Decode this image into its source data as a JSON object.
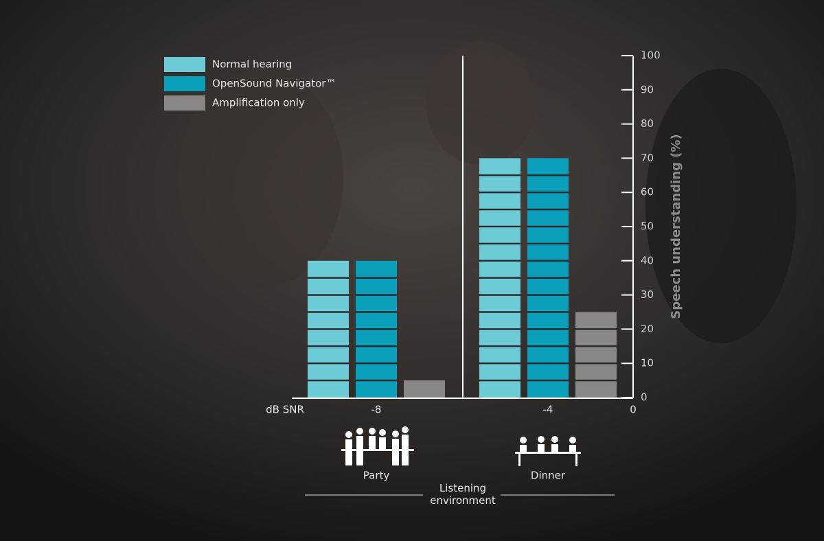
{
  "chart_data": {
    "type": "bar",
    "categories": [
      "-8",
      "-4"
    ],
    "x_axis_label": "dB SNR",
    "x_axis_end_label": "0",
    "y_axis_label": "Speech understanding (%)",
    "environments": [
      "Party",
      "Dinner"
    ],
    "environment_title": "Listening environment",
    "series": [
      {
        "name": "Normal hearing",
        "color": "#6ccbd6",
        "values": [
          40,
          70
        ]
      },
      {
        "name": "OpenSound Navigator™",
        "color": "#0a9fbb",
        "values": [
          40,
          70
        ]
      },
      {
        "name": "Amplification only",
        "color": "#8a8785",
        "values": [
          5,
          25
        ]
      }
    ],
    "ylim": [
      0,
      100
    ],
    "yticks": [
      0,
      10,
      20,
      30,
      40,
      50,
      60,
      70,
      80,
      90,
      100
    ]
  }
}
